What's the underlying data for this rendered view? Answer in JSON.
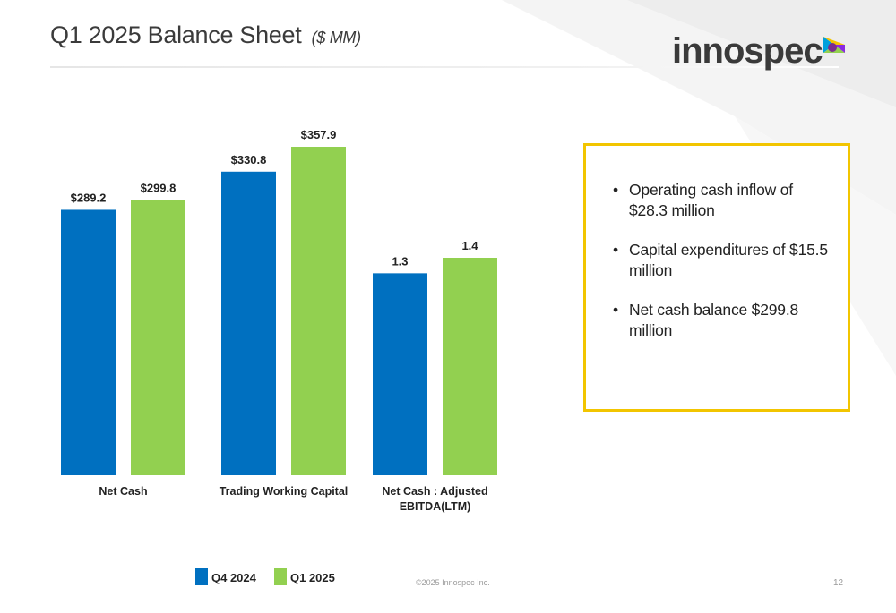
{
  "header": {
    "title": "Q1 2025 Balance Sheet",
    "title_sub": "($ MM)"
  },
  "logo": {
    "text": "innospec",
    "icon": "triangle-play-logo-icon"
  },
  "colors": {
    "q4_2024": "#0070c0",
    "q1_2025": "#92d050",
    "callout_border": "#f2c500",
    "title_text": "#3b3b3b"
  },
  "chart_data": {
    "type": "bar",
    "title": "",
    "xlabel": "",
    "ylabel": "",
    "categories": [
      "Net Cash",
      "Trading Working Capital",
      "Net Cash : Adjusted EBITDA(LTM)"
    ],
    "series": [
      {
        "name": "Q4 2024",
        "values": [
          289.2,
          330.8,
          1.3
        ],
        "labels": [
          "$289.2",
          "$330.8",
          "1.3"
        ]
      },
      {
        "name": "Q1 2025",
        "values": [
          299.8,
          357.9,
          1.4
        ],
        "labels": [
          "$299.8",
          "$357.9",
          "1.4"
        ]
      }
    ],
    "grid": false,
    "legend_position": "bottom"
  },
  "callout": {
    "bullet_char": "•",
    "bullets": [
      "Operating cash inflow of $28.3 million",
      "Capital expenditures of $15.5 million",
      "Net cash balance $299.8 million"
    ]
  },
  "footer": {
    "copyright": "©2025 Innospec Inc.",
    "page_number": "12"
  }
}
